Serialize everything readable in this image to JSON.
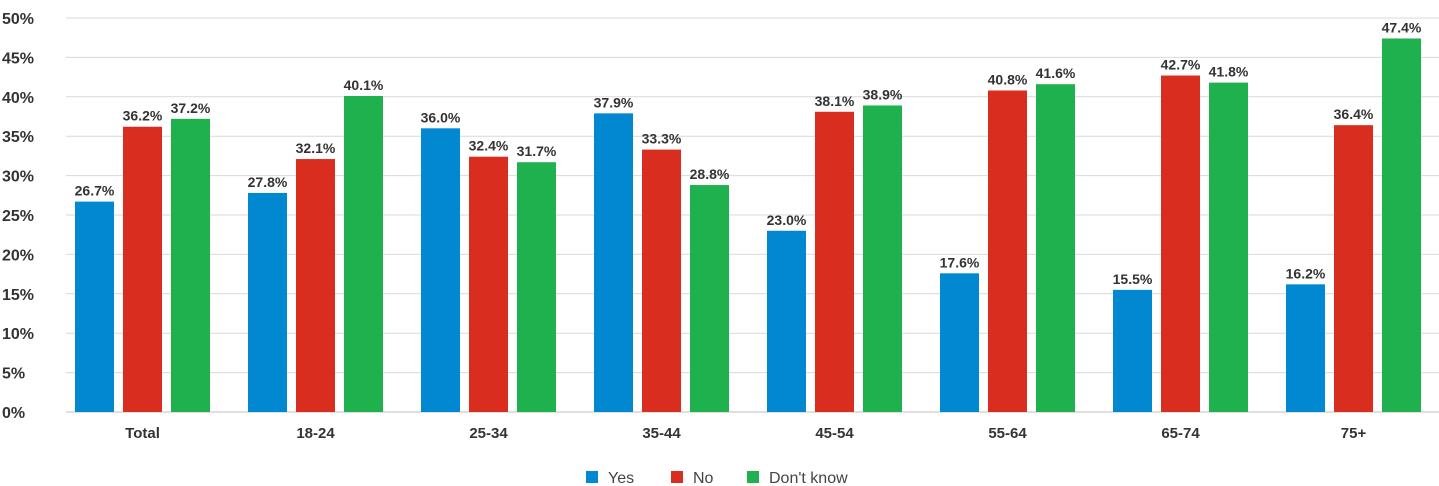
{
  "chart_data": {
    "type": "bar",
    "title": "",
    "xlabel": "",
    "ylabel": "",
    "categories": [
      "Total",
      "18-24",
      "25-34",
      "35-44",
      "45-54",
      "55-64",
      "65-74",
      "75+"
    ],
    "series": [
      {
        "name": "Yes",
        "color": "#0288d1",
        "values": [
          26.7,
          27.8,
          36.0,
          37.9,
          23.0,
          17.6,
          15.5,
          16.2
        ]
      },
      {
        "name": "No",
        "color": "#d92d20",
        "values": [
          36.2,
          32.1,
          32.4,
          33.3,
          38.1,
          40.8,
          42.7,
          36.4
        ]
      },
      {
        "name": "Don't know",
        "color": "#1fb14d",
        "values": [
          37.2,
          40.1,
          31.7,
          28.8,
          38.9,
          41.6,
          41.8,
          47.4
        ]
      }
    ],
    "ylim": [
      0,
      50
    ],
    "yticks": [
      "0%",
      "5%",
      "10%",
      "15%",
      "20%",
      "25%",
      "30%",
      "35%",
      "40%",
      "45%",
      "50%"
    ],
    "data_label_format": "percent_1dp",
    "grid": true,
    "legend_position": "bottom-center"
  }
}
